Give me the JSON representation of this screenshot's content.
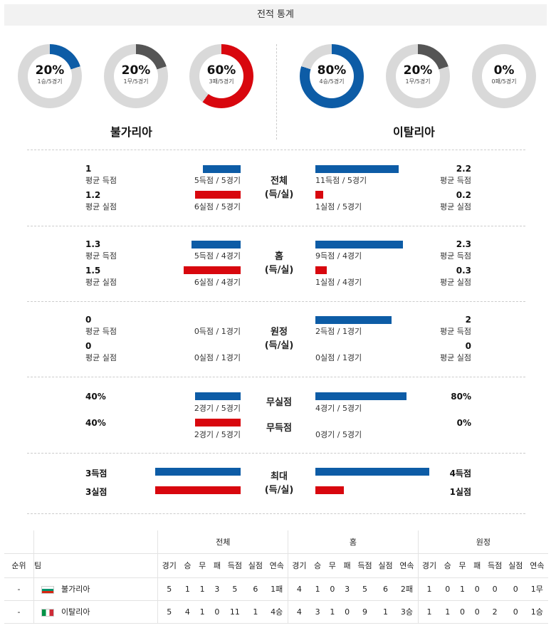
{
  "title": "전적 통계",
  "teams": {
    "home": "불가리아",
    "away": "이탈리아"
  },
  "donuts": [
    {
      "pct": "20%",
      "sub": "1승/5경기",
      "value": 20,
      "color": "#0d5ca6"
    },
    {
      "pct": "20%",
      "sub": "1무/5경기",
      "value": 20,
      "color": "#555555"
    },
    {
      "pct": "60%",
      "sub": "3패/5경기",
      "value": 60,
      "color": "#d8070e"
    },
    {
      "pct": "80%",
      "sub": "4승/5경기",
      "value": 80,
      "color": "#0d5ca6"
    },
    {
      "pct": "20%",
      "sub": "1무/5경기",
      "value": 20,
      "color": "#555555"
    },
    {
      "pct": "0%",
      "sub": "0패/5경기",
      "value": 0,
      "color": "#555555"
    }
  ],
  "sections": {
    "overall": {
      "cat1": "전체",
      "cat2": "(득/실)",
      "home": {
        "scored": "1",
        "scored_lbl": "평균 득점",
        "scored_detail": "5득점 / 5경기",
        "conceded": "1.2",
        "conceded_lbl": "평균 실점",
        "conceded_detail": "6실점 / 5경기"
      },
      "away": {
        "scored": "2.2",
        "scored_lbl": "평균 득점",
        "scored_detail": "11득점 / 5경기",
        "conceded": "0.2",
        "conceded_lbl": "평균 실점",
        "conceded_detail": "1실점 / 5경기"
      }
    },
    "home_games": {
      "cat1": "홈",
      "cat2": "(득/실)",
      "home": {
        "scored": "1.3",
        "scored_lbl": "평균 득점",
        "scored_detail": "5득점 / 4경기",
        "conceded": "1.5",
        "conceded_lbl": "평균 실점",
        "conceded_detail": "6실점 / 4경기"
      },
      "away": {
        "scored": "2.3",
        "scored_lbl": "평균 득점",
        "scored_detail": "9득점 / 4경기",
        "conceded": "0.3",
        "conceded_lbl": "평균 실점",
        "conceded_detail": "1실점 / 4경기"
      }
    },
    "away_games": {
      "cat1": "원정",
      "cat2": "(득/실)",
      "home": {
        "scored": "0",
        "scored_lbl": "평균 득점",
        "scored_detail": "0득점 / 1경기",
        "conceded": "0",
        "conceded_lbl": "평균 실점",
        "conceded_detail": "0실점 / 1경기"
      },
      "away": {
        "scored": "2",
        "scored_lbl": "평균 득점",
        "scored_detail": "2득점 / 1경기",
        "conceded": "0",
        "conceded_lbl": "평균 실점",
        "conceded_detail": "0실점 / 1경기"
      }
    },
    "clean": {
      "cat1": "무실점",
      "cat2": "무득점",
      "home": {
        "clean": "40%",
        "clean_detail": "2경기 / 5경기",
        "nogoal": "40%",
        "nogoal_detail": "2경기 / 5경기"
      },
      "away": {
        "clean": "80%",
        "clean_detail": "4경기 / 5경기",
        "nogoal": "0%",
        "nogoal_detail": "0경기 / 5경기"
      }
    },
    "max": {
      "cat1": "최대",
      "cat2": "(득/실)",
      "home": {
        "scored": "3득점",
        "conceded": "3실점"
      },
      "away": {
        "scored": "4득점",
        "conceded": "1실점"
      }
    }
  },
  "table": {
    "groups": [
      "전체",
      "홈",
      "원정"
    ],
    "headers": [
      "순위",
      "팀",
      "경기",
      "승",
      "무",
      "패",
      "득점",
      "실점",
      "연속",
      "경기",
      "승",
      "무",
      "패",
      "득점",
      "실점",
      "연속",
      "경기",
      "승",
      "무",
      "패",
      "득점",
      "실점",
      "연속"
    ],
    "rows": [
      [
        "-",
        "불가리아",
        "5",
        "1",
        "1",
        "3",
        "5",
        "6",
        "1패",
        "4",
        "1",
        "0",
        "3",
        "5",
        "6",
        "2패",
        "1",
        "0",
        "1",
        "0",
        "0",
        "0",
        "1무"
      ],
      [
        "-",
        "이탈리아",
        "5",
        "4",
        "1",
        "0",
        "11",
        "1",
        "4승",
        "4",
        "3",
        "1",
        "0",
        "9",
        "1",
        "3승",
        "1",
        "1",
        "0",
        "0",
        "2",
        "0",
        "1승"
      ]
    ],
    "flags": [
      "bulgaria-flag-icon",
      "italy-flag-icon"
    ]
  }
}
